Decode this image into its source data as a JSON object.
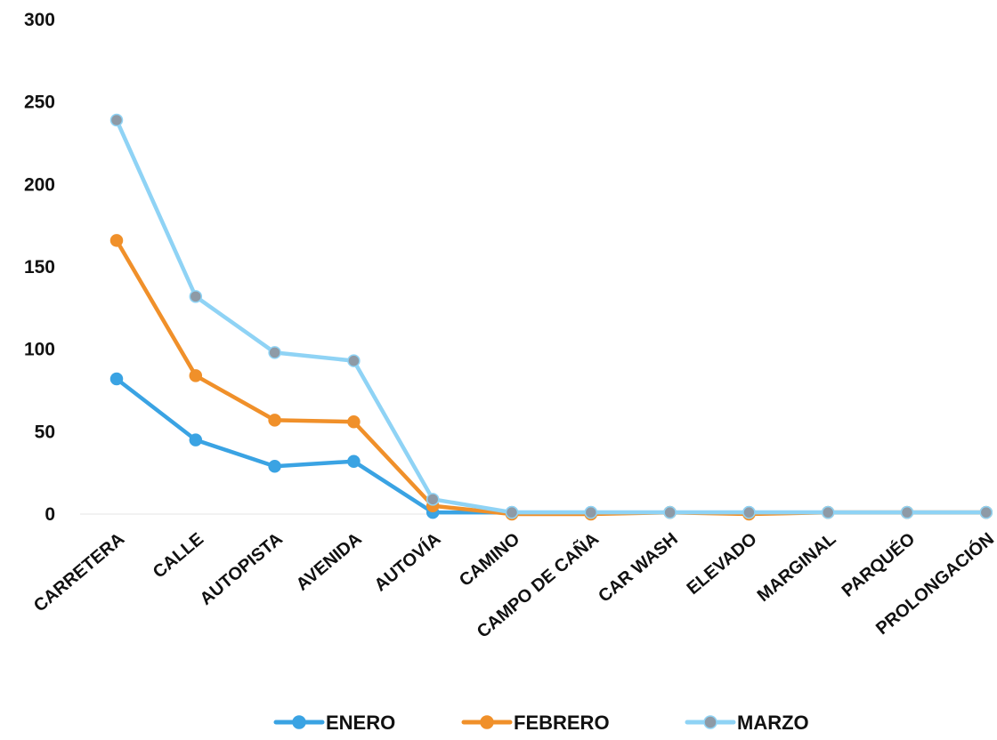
{
  "chart_data": {
    "type": "line",
    "title": "",
    "xlabel": "",
    "ylabel": "",
    "ylim": [
      0,
      300
    ],
    "yticks": [
      0,
      50,
      100,
      150,
      200,
      250,
      300
    ],
    "grid": false,
    "legend_position": "bottom",
    "categories": [
      "CARRETERA",
      "CALLE",
      "AUTOPISTA",
      "AVENIDA",
      "AUTOVÍA",
      "CAMINO",
      "CAMPO DE CAÑA",
      "CAR WASH",
      "ELEVADO",
      "MARGINAL",
      "PARQUÉO",
      "PROLONGACIÓN"
    ],
    "series": [
      {
        "name": "ENERO",
        "color": "#3aa3e3",
        "values": [
          82,
          45,
          29,
          32,
          1,
          1,
          1,
          1,
          1,
          1,
          1,
          1
        ]
      },
      {
        "name": "FEBRERO",
        "color": "#f0902a",
        "values": [
          166,
          84,
          57,
          56,
          5,
          0,
          0,
          1,
          0,
          1,
          1,
          1
        ]
      },
      {
        "name": "MARZO",
        "color": "#8fd3f5",
        "values": [
          239,
          132,
          98,
          93,
          9,
          1,
          1,
          1,
          1,
          1,
          1,
          1
        ]
      }
    ]
  }
}
